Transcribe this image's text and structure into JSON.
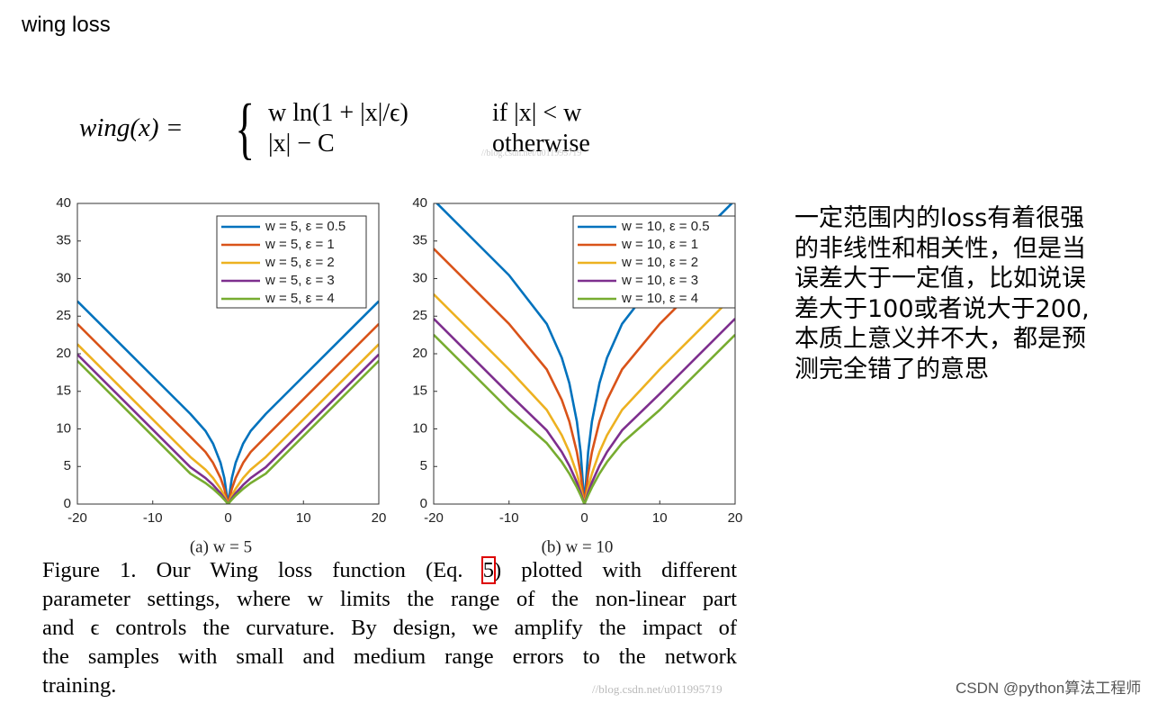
{
  "header": {
    "title": "wing loss"
  },
  "formula": {
    "lhs": "wing(x) =",
    "cases": [
      {
        "expr": "w ln(1 + |x|/ϵ)",
        "cond": "if |x| < w"
      },
      {
        "expr": "|x| − C",
        "cond": "otherwise"
      }
    ]
  },
  "watermark": "//blog.csdn.net/u011995719",
  "chart_data": [
    {
      "type": "line",
      "caption": "(a) w = 5",
      "x": [
        -20,
        -15,
        -10,
        -5,
        -3,
        -2,
        -1,
        -0.5,
        0,
        0.5,
        1,
        2,
        3,
        5,
        10,
        15,
        20
      ],
      "xlim": [
        -20,
        20
      ],
      "xticks": [
        -20,
        -10,
        0,
        10,
        20
      ],
      "ylim": [
        0,
        40
      ],
      "yticks": [
        0,
        5,
        10,
        15,
        20,
        25,
        30,
        35,
        40
      ],
      "grid": false,
      "legend": "upper right",
      "series": [
        {
          "name": "w = 5, ε = 0.5",
          "color": "#0072bd",
          "values": [
            26.99,
            21.99,
            16.99,
            11.99,
            9.73,
            8.05,
            5.49,
            3.47,
            0,
            3.47,
            5.49,
            8.05,
            9.73,
            11.99,
            16.99,
            21.99,
            26.99
          ]
        },
        {
          "name": "w = 5, ε = 1",
          "color": "#d95319",
          "values": [
            23.96,
            18.96,
            13.96,
            8.96,
            6.93,
            5.49,
            3.47,
            2.03,
            0,
            2.03,
            3.47,
            5.49,
            6.93,
            8.96,
            13.96,
            18.96,
            23.96
          ]
        },
        {
          "name": "w = 5, ε = 2",
          "color": "#edb120",
          "values": [
            21.26,
            16.26,
            11.26,
            6.26,
            4.58,
            3.47,
            2.03,
            1.12,
            0,
            1.12,
            2.03,
            3.47,
            4.58,
            6.26,
            11.26,
            16.26,
            21.26
          ]
        },
        {
          "name": "w = 5, ε = 3",
          "color": "#7e2f8e",
          "values": [
            19.9,
            14.9,
            9.9,
            4.9,
            3.47,
            2.55,
            1.44,
            0.77,
            0,
            0.77,
            1.44,
            2.55,
            3.47,
            4.9,
            9.9,
            14.9,
            19.9
          ]
        },
        {
          "name": "w = 5, ε = 4",
          "color": "#77ac30",
          "values": [
            19.05,
            14.05,
            9.05,
            4.05,
            2.8,
            2.03,
            1.12,
            0.59,
            0,
            0.59,
            1.12,
            2.03,
            2.8,
            4.05,
            9.05,
            14.05,
            19.05
          ]
        }
      ]
    },
    {
      "type": "line",
      "caption": "(b) w = 10",
      "x": [
        -20,
        -15,
        -10,
        -5,
        -3,
        -2,
        -1,
        -0.5,
        0,
        0.5,
        1,
        2,
        3,
        5,
        10,
        15,
        20
      ],
      "xlim": [
        -20,
        20
      ],
      "xticks": [
        -20,
        -10,
        0,
        10,
        20
      ],
      "ylim": [
        0,
        40
      ],
      "yticks": [
        0,
        5,
        10,
        15,
        20,
        25,
        30,
        35,
        40
      ],
      "grid": false,
      "legend": "upper right",
      "series": [
        {
          "name": "w = 10, ε = 0.5",
          "color": "#0072bd",
          "values": [
            40.45,
            35.45,
            30.45,
            23.98,
            19.46,
            16.09,
            10.99,
            6.93,
            0,
            6.93,
            10.99,
            16.09,
            19.46,
            23.98,
            30.45,
            35.45,
            40.45
          ]
        },
        {
          "name": "w = 10, ε = 1",
          "color": "#d95319",
          "values": [
            33.98,
            28.98,
            23.98,
            17.92,
            13.86,
            10.99,
            6.93,
            4.05,
            0,
            4.05,
            6.93,
            10.99,
            13.86,
            17.92,
            23.98,
            28.98,
            33.98
          ]
        },
        {
          "name": "w = 10, ε = 2",
          "color": "#edb120",
          "values": [
            27.92,
            22.92,
            17.92,
            12.53,
            9.16,
            6.93,
            4.05,
            2.23,
            0,
            2.23,
            4.05,
            6.93,
            9.16,
            12.53,
            17.92,
            22.92,
            27.92
          ]
        },
        {
          "name": "w = 10, ε = 3",
          "color": "#7e2f8e",
          "values": [
            24.66,
            19.66,
            14.66,
            9.81,
            6.93,
            5.11,
            2.88,
            1.54,
            0,
            1.54,
            2.88,
            5.11,
            6.93,
            9.81,
            14.66,
            19.66,
            24.66
          ]
        },
        {
          "name": "w = 10, ε = 4",
          "color": "#77ac30",
          "values": [
            22.53,
            17.53,
            12.53,
            8.11,
            5.6,
            4.05,
            2.23,
            1.18,
            0,
            1.18,
            2.23,
            4.05,
            5.6,
            8.11,
            12.53,
            17.53,
            22.53
          ]
        }
      ]
    }
  ],
  "figure_caption": {
    "lines": [
      [
        "Figure 1. Our Wing loss function (Eq. ",
        "5",
        ") plotted with different"
      ],
      [
        "parameter settings, where w limits the range of the non-linear part"
      ],
      [
        "and ϵ controls the curvature. By design, we amplify the impact of"
      ],
      [
        "the samples with small and medium range errors to the network"
      ],
      [
        "training."
      ]
    ]
  },
  "watermark2": "//blog.csdn.net/u011995719",
  "note": {
    "lines": [
      "一定范围内的loss有着很强",
      "的非线性和相关性，但是当",
      "误差大于一定值，比如说误",
      "差大于100或者说大于200,",
      "本质上意义并不大，都是预",
      "测完全错了的意思"
    ]
  },
  "footer": "CSDN @python算法工程师"
}
